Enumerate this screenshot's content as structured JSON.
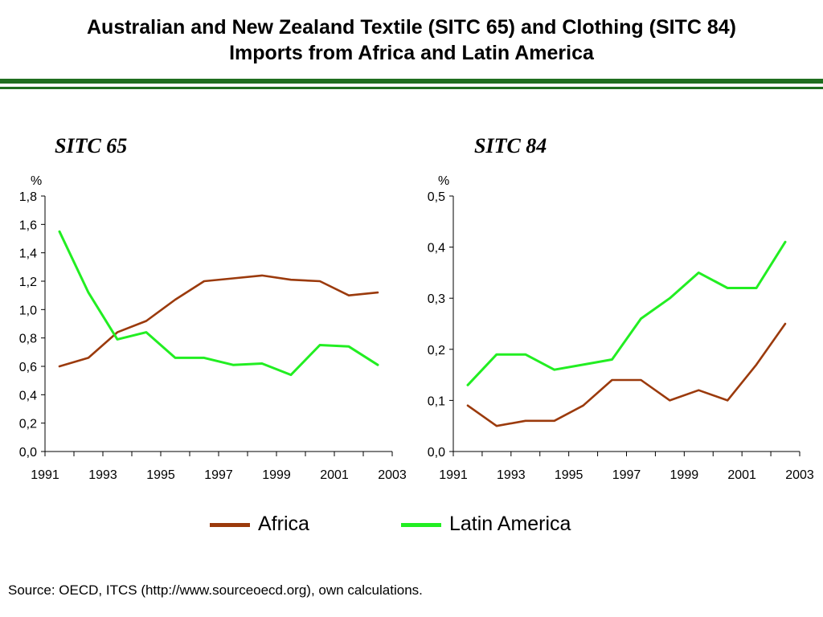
{
  "header": {
    "title_line1": "Australian and New Zealand Textile (SITC 65) and Clothing (SITC 84)",
    "title_line2": "Imports from Africa and Latin America"
  },
  "colors": {
    "rule": "#1f6e1f",
    "africa": "#9b3a0c",
    "latin_america": "#22ee22",
    "axis": "#000000"
  },
  "chart_data": [
    {
      "type": "line",
      "title": "SITC 65",
      "ylabel": "%",
      "ylim": [
        0,
        1.8
      ],
      "yticks": [
        "0,0",
        "0,2",
        "0,4",
        "0,6",
        "0,8",
        "1,0",
        "1,2",
        "1,4",
        "1,6",
        "1,8"
      ],
      "xlim": [
        1991,
        2003
      ],
      "xticks": [
        "1991",
        "1993",
        "1995",
        "1997",
        "1999",
        "2001",
        "2003"
      ],
      "x": [
        1991,
        1992,
        1993,
        1994,
        1995,
        1996,
        1997,
        1998,
        1999,
        2000,
        2001,
        2002
      ],
      "series": [
        {
          "name": "Africa",
          "values": [
            0.6,
            0.66,
            0.84,
            0.92,
            1.07,
            1.2,
            1.22,
            1.24,
            1.21,
            1.2,
            1.1,
            1.12
          ]
        },
        {
          "name": "Latin America",
          "values": [
            1.55,
            1.12,
            0.79,
            0.84,
            0.66,
            0.66,
            0.61,
            0.62,
            0.54,
            0.75,
            0.74,
            0.61
          ]
        }
      ]
    },
    {
      "type": "line",
      "title": "SITC 84",
      "ylabel": "%",
      "ylim": [
        0,
        0.5
      ],
      "yticks": [
        "0,0",
        "0,1",
        "0,2",
        "0,3",
        "0,4",
        "0,5"
      ],
      "xlim": [
        1991,
        2003
      ],
      "xticks": [
        "1991",
        "1993",
        "1995",
        "1997",
        "1999",
        "2001",
        "2003"
      ],
      "x": [
        1991,
        1992,
        1993,
        1994,
        1995,
        1996,
        1997,
        1998,
        1999,
        2000,
        2001,
        2002
      ],
      "series": [
        {
          "name": "Africa",
          "values": [
            0.09,
            0.05,
            0.06,
            0.06,
            0.09,
            0.14,
            0.14,
            0.1,
            0.12,
            0.1,
            0.17,
            0.25
          ]
        },
        {
          "name": "Latin America",
          "values": [
            0.13,
            0.19,
            0.19,
            0.16,
            0.17,
            0.18,
            0.26,
            0.3,
            0.35,
            0.32,
            0.32,
            0.41
          ]
        }
      ]
    }
  ],
  "legend": {
    "africa_label": "Africa",
    "latin_label": "Latin America"
  },
  "source": "Source: OECD, ITCS (http://www.sourceoecd.org), own calculations."
}
